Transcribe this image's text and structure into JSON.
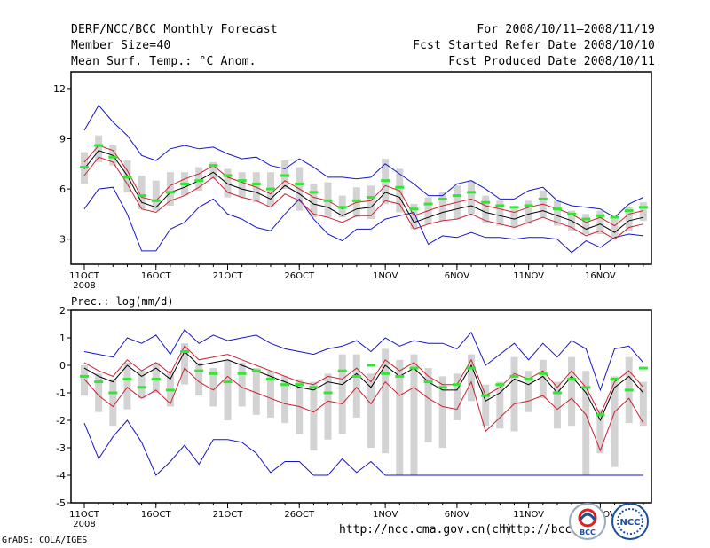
{
  "header": {
    "title": "DERF/NCC/BCC Monthly Forecast",
    "member_size": "Member Size=40",
    "variable": "Mean Surf. Temp.: °C Anom.",
    "period": "For 2008/10/11—2008/11/19",
    "start_date": "Fcst Started Refer Date 2008/10/10",
    "produced_date": "Fcst Produced Date 2008/10/11"
  },
  "footer": {
    "url1": "http://ncc.cma.gov.cn(ch)",
    "url2": "http://bcc.",
    "credit": "GrADS: COLA/IGES",
    "logo_bcc": "BCC",
    "logo_ncc": "NCC"
  },
  "colors": {
    "green": "#33e633",
    "box": "#d3d3d3",
    "red": "#cc2030",
    "blue": "#1515c8",
    "black": "#000000"
  },
  "chart_data": [
    {
      "type": "line",
      "title": "Mean Surf. Temp.: °C Anom.",
      "ylim": [
        1.5,
        13
      ],
      "yticks": [
        3,
        6,
        9,
        12
      ],
      "x_tick_labels": [
        "11OCT",
        "16OCT",
        "21OCT",
        "26OCT",
        "1NOV",
        "6NOV",
        "11NOV",
        "16NOV"
      ],
      "x_tick_days": [
        1,
        6,
        11,
        16,
        22,
        27,
        32,
        37
      ],
      "x_year_label": "2008",
      "days": 40,
      "series": [
        {
          "name": "max",
          "color": "blue",
          "values": [
            4.8,
            6.0,
            6.1,
            4.5,
            2.3,
            2.3,
            3.6,
            4.0,
            4.9,
            5.4,
            4.5,
            4.2,
            3.7,
            3.5,
            4.5,
            5.4,
            4.2,
            3.3,
            2.9,
            3.6,
            3.6,
            4.2,
            4.4,
            4.6,
            2.7,
            3.2,
            3.1,
            3.4,
            3.1,
            3.1,
            3.0,
            3.1,
            3.1,
            3.0,
            2.2,
            2.9,
            2.5,
            3.1,
            3.3,
            3.2
          ]
        },
        {
          "name": "q_low",
          "color": "red",
          "values": [
            6.8,
            7.9,
            7.6,
            6.3,
            4.8,
            4.6,
            5.3,
            5.6,
            6.1,
            6.7,
            5.8,
            5.5,
            5.3,
            4.9,
            5.7,
            5.3,
            4.5,
            4.3,
            4.0,
            4.4,
            4.4,
            5.3,
            5.1,
            3.6,
            3.9,
            4.1,
            4.2,
            4.5,
            4.1,
            3.9,
            3.7,
            4.0,
            4.3,
            4.0,
            3.7,
            3.2,
            3.5,
            3.0,
            3.7,
            3.9
          ]
        },
        {
          "name": "mean",
          "color": "black",
          "values": [
            7.2,
            8.3,
            8.0,
            6.8,
            5.2,
            4.9,
            5.8,
            6.1,
            6.5,
            7.0,
            6.3,
            6.0,
            5.8,
            5.4,
            6.2,
            5.7,
            5.1,
            4.9,
            4.4,
            4.8,
            4.9,
            5.8,
            5.5,
            4.0,
            4.3,
            4.6,
            4.8,
            5.0,
            4.6,
            4.4,
            4.2,
            4.5,
            4.7,
            4.4,
            4.1,
            3.6,
            3.9,
            3.4,
            4.1,
            4.3
          ]
        },
        {
          "name": "q_high",
          "color": "red",
          "values": [
            7.6,
            8.6,
            8.3,
            7.1,
            5.5,
            5.3,
            6.2,
            6.6,
            6.9,
            7.4,
            6.7,
            6.4,
            6.1,
            5.7,
            6.5,
            6.0,
            5.5,
            5.3,
            4.8,
            5.2,
            5.3,
            6.2,
            5.9,
            4.4,
            4.7,
            5.0,
            5.2,
            5.4,
            5.0,
            4.8,
            4.6,
            4.9,
            5.1,
            4.8,
            4.5,
            4.0,
            4.3,
            3.8,
            4.5,
            4.7
          ]
        },
        {
          "name": "min",
          "color": "blue",
          "values": [
            9.5,
            11.0,
            10.0,
            9.2,
            8.0,
            7.7,
            8.4,
            8.6,
            8.4,
            8.5,
            8.1,
            7.8,
            7.9,
            7.4,
            7.2,
            7.8,
            7.3,
            6.7,
            6.7,
            6.6,
            6.7,
            7.5,
            6.9,
            6.3,
            5.6,
            5.6,
            6.3,
            6.5,
            6.0,
            5.4,
            5.4,
            5.9,
            6.1,
            5.3,
            5.0,
            4.9,
            4.8,
            4.3,
            5.1,
            5.5
          ]
        },
        {
          "name": "box_low",
          "color": "box",
          "values": [
            6.3,
            7.6,
            7.4,
            5.8,
            4.8,
            4.7,
            5.0,
            5.6,
            5.9,
            6.6,
            5.5,
            5.5,
            5.2,
            4.9,
            6.0,
            4.7,
            4.3,
            4.3,
            4.3,
            4.3,
            4.2,
            5.1,
            4.6,
            3.6,
            3.9,
            4.1,
            4.2,
            4.5,
            4.0,
            3.8,
            3.7,
            3.9,
            4.3,
            3.8,
            3.5,
            3.3,
            3.3,
            3.1,
            3.5,
            4.1
          ]
        },
        {
          "name": "box_high",
          "color": "box",
          "values": [
            8.2,
            9.2,
            8.6,
            7.7,
            6.8,
            6.5,
            7.0,
            7.0,
            7.3,
            7.6,
            7.2,
            7.0,
            7.0,
            7.0,
            7.7,
            7.3,
            6.3,
            6.4,
            5.6,
            6.1,
            6.2,
            7.8,
            7.2,
            5.1,
            5.5,
            5.8,
            6.2,
            6.5,
            5.6,
            5.3,
            4.8,
            5.3,
            5.9,
            5.3,
            4.7,
            4.5,
            4.7,
            4.2,
            4.9,
            5.2
          ]
        },
        {
          "name": "median",
          "color": "green",
          "values": [
            7.3,
            8.6,
            7.9,
            6.7,
            5.6,
            5.3,
            5.8,
            6.3,
            6.5,
            7.4,
            6.8,
            6.5,
            6.3,
            6.0,
            6.8,
            6.3,
            5.8,
            5.3,
            4.9,
            5.3,
            5.5,
            6.5,
            6.1,
            4.8,
            5.1,
            5.4,
            5.6,
            5.8,
            5.2,
            5.0,
            4.9,
            5.0,
            5.4,
            4.8,
            4.5,
            4.2,
            4.4,
            4.3,
            4.7,
            4.9
          ]
        }
      ]
    },
    {
      "type": "line",
      "title": "Prec.: log(mm/d)",
      "ylim": [
        -5,
        2
      ],
      "yticks": [
        -5,
        -4,
        -3,
        -2,
        -1,
        0,
        1,
        2
      ],
      "x_tick_labels": [
        "11OCT",
        "16OCT",
        "21OCT",
        "26OCT",
        "1NOV",
        "6NOV",
        "11NOV",
        "16NOV"
      ],
      "x_tick_days": [
        1,
        6,
        11,
        16,
        22,
        27,
        32,
        37
      ],
      "x_year_label": "2008",
      "days": 40,
      "series": [
        {
          "name": "min",
          "color": "blue",
          "values": [
            -2.1,
            -3.4,
            -2.6,
            -2.0,
            -2.8,
            -4.0,
            -3.5,
            -2.9,
            -3.6,
            -2.7,
            -2.7,
            -2.8,
            -3.2,
            -3.9,
            -3.5,
            -3.5,
            -4.0,
            -4.0,
            -3.4,
            -3.9,
            -3.5,
            -4.0,
            -4.0,
            -4.0,
            -4.0,
            -4.0,
            -4.0,
            -4.0,
            -4.0,
            -4.0,
            -4.0,
            -4.0,
            -4.0,
            -4.0,
            -4.0,
            -4.0,
            -4.0,
            -4.0,
            -4.0,
            -4.0
          ]
        },
        {
          "name": "q_low",
          "color": "red",
          "values": [
            -0.5,
            -1.1,
            -1.5,
            -0.8,
            -1.2,
            -0.9,
            -1.4,
            -0.1,
            -0.6,
            -0.9,
            -0.4,
            -0.8,
            -1.0,
            -1.2,
            -1.4,
            -1.5,
            -1.7,
            -1.3,
            -1.4,
            -0.8,
            -1.4,
            -0.6,
            -1.1,
            -0.8,
            -1.2,
            -1.5,
            -1.6,
            -0.6,
            -2.4,
            -1.9,
            -1.4,
            -1.3,
            -1.1,
            -1.6,
            -1.2,
            -1.8,
            -3.1,
            -1.7,
            -1.2,
            -2.1
          ]
        },
        {
          "name": "mean",
          "color": "black",
          "values": [
            -0.1,
            -0.4,
            -0.6,
            0.0,
            -0.4,
            -0.1,
            -0.5,
            0.5,
            0.0,
            0.1,
            0.2,
            0.0,
            -0.2,
            -0.4,
            -0.6,
            -0.8,
            -0.9,
            -0.6,
            -0.7,
            -0.3,
            -0.8,
            0.0,
            -0.4,
            -0.1,
            -0.6,
            -0.9,
            -0.9,
            0.0,
            -1.3,
            -1.0,
            -0.5,
            -0.7,
            -0.4,
            -1.0,
            -0.4,
            -1.0,
            -2.0,
            -0.8,
            -0.4,
            -1.0
          ]
        },
        {
          "name": "q_high",
          "color": "red",
          "values": [
            0.1,
            -0.2,
            -0.4,
            0.2,
            -0.2,
            0.1,
            -0.3,
            0.7,
            0.2,
            0.3,
            0.4,
            0.2,
            0.0,
            -0.2,
            -0.4,
            -0.6,
            -0.7,
            -0.4,
            -0.5,
            -0.1,
            -0.6,
            0.2,
            -0.2,
            0.1,
            -0.4,
            -0.7,
            -0.7,
            0.2,
            -1.1,
            -0.8,
            -0.3,
            -0.5,
            -0.2,
            -0.8,
            -0.2,
            -0.8,
            -1.8,
            -0.6,
            -0.2,
            -0.8
          ]
        },
        {
          "name": "max",
          "color": "blue",
          "values": [
            0.5,
            0.4,
            0.3,
            1.0,
            0.8,
            1.1,
            0.4,
            1.3,
            0.8,
            1.1,
            0.9,
            1.0,
            1.1,
            0.8,
            0.6,
            0.5,
            0.4,
            0.6,
            0.7,
            0.9,
            0.5,
            1.0,
            0.7,
            0.9,
            0.8,
            0.8,
            0.6,
            1.2,
            0.0,
            0.4,
            0.8,
            0.2,
            0.8,
            0.3,
            0.9,
            0.6,
            -0.9,
            0.6,
            0.7,
            0.1
          ]
        },
        {
          "name": "box_low",
          "color": "box",
          "values": [
            -1.1,
            -1.7,
            -2.2,
            -1.6,
            -1.2,
            -1.0,
            -1.5,
            -0.7,
            -1.1,
            -1.5,
            -2.0,
            -1.5,
            -1.8,
            -1.9,
            -2.1,
            -2.5,
            -3.1,
            -2.7,
            -2.5,
            -1.9,
            -3.0,
            -3.2,
            -4.0,
            -4.0,
            -2.8,
            -3.0,
            -2.0,
            -1.3,
            -2.2,
            -2.3,
            -2.4,
            -1.7,
            -1.2,
            -2.3,
            -2.2,
            -4.0,
            -3.2,
            -3.7,
            -2.1,
            -2.2
          ]
        },
        {
          "name": "box_high",
          "color": "box",
          "values": [
            0.0,
            -0.3,
            -0.5,
            0.1,
            -0.2,
            0.1,
            -0.2,
            0.8,
            0.1,
            -0.1,
            0.2,
            0.1,
            -0.1,
            -0.2,
            -0.4,
            -0.5,
            -0.6,
            -0.3,
            0.4,
            0.4,
            -0.3,
            0.6,
            0.2,
            0.4,
            -0.1,
            -0.4,
            -0.3,
            0.4,
            -0.7,
            -0.6,
            0.3,
            -0.2,
            0.2,
            -0.6,
            0.3,
            -0.2,
            -1.6,
            -0.4,
            0.3,
            -0.6
          ]
        },
        {
          "name": "median",
          "color": "green",
          "values": [
            -0.4,
            -0.6,
            -1.0,
            -0.5,
            -0.8,
            -0.5,
            -0.9,
            0.5,
            -0.2,
            -0.3,
            -0.6,
            -0.3,
            -0.2,
            -0.5,
            -0.7,
            -0.7,
            -0.8,
            -1.0,
            -0.2,
            -0.4,
            0.0,
            -0.3,
            -0.4,
            -0.1,
            -0.6,
            -0.8,
            -0.7,
            -0.1,
            -1.1,
            -0.7,
            -0.4,
            -0.5,
            -0.3,
            -1.0,
            -0.5,
            -0.8,
            -1.8,
            -0.5,
            -0.9,
            -0.1
          ]
        }
      ]
    }
  ]
}
